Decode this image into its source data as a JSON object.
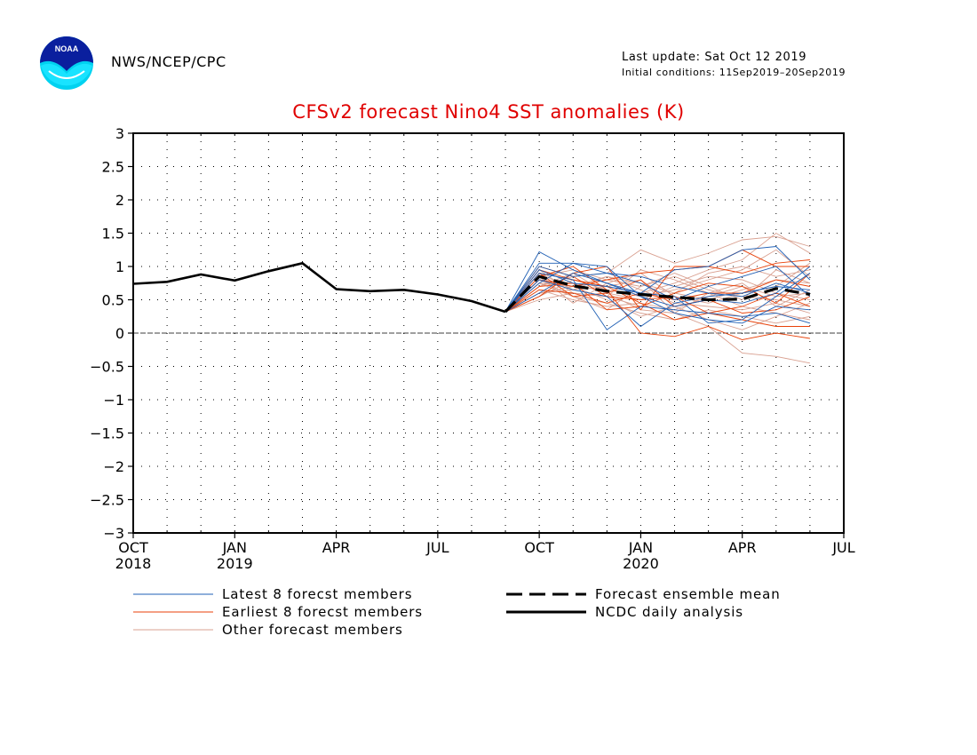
{
  "header": {
    "org": "NWS/NCEP/CPC",
    "last_update": "Last update: Sat Oct 12 2019",
    "initial_conditions": "Initial conditions: 11Sep2019–20Sep2019"
  },
  "logo": {
    "text": "NOAA"
  },
  "chart_data": {
    "type": "line",
    "title": "CFSv2 forecast Nino4 SST anomalies (K)",
    "xlabel": "",
    "ylabel": "",
    "ylim": [
      -3,
      3
    ],
    "xlim": [
      "2018-10",
      "2020-07"
    ],
    "grid": true,
    "yticks": [
      "3",
      "2.5",
      "2",
      "1.5",
      "1",
      "0.5",
      "0",
      "−0.5",
      "−1",
      "−1.5",
      "−2",
      "−2.5",
      "−3"
    ],
    "ytick_values": [
      3,
      2.5,
      2,
      1.5,
      1,
      0.5,
      0,
      -0.5,
      -1,
      -1.5,
      -2,
      -2.5,
      -3
    ],
    "xticks": [
      {
        "month": "2018-10",
        "label": "OCT",
        "year": "2018"
      },
      {
        "month": "2019-01",
        "label": "JAN",
        "year": "2019"
      },
      {
        "month": "2019-04",
        "label": "APR",
        "year": ""
      },
      {
        "month": "2019-07",
        "label": "JUL",
        "year": ""
      },
      {
        "month": "2019-10",
        "label": "OCT",
        "year": ""
      },
      {
        "month": "2020-01",
        "label": "JAN",
        "year": "2020"
      },
      {
        "month": "2020-04",
        "label": "APR",
        "year": ""
      },
      {
        "month": "2020-07",
        "label": "JUL",
        "year": ""
      }
    ],
    "series": [
      {
        "name": "NCDC daily analysis",
        "style": "solid",
        "color": "#000000",
        "x": [
          "2018-10",
          "2018-11",
          "2018-12",
          "2019-01",
          "2019-02",
          "2019-03",
          "2019-04",
          "2019-05",
          "2019-06",
          "2019-07",
          "2019-08",
          "2019-09"
        ],
        "y": [
          0.74,
          0.77,
          0.88,
          0.79,
          0.93,
          1.05,
          0.66,
          0.63,
          0.65,
          0.58,
          0.48,
          0.32
        ]
      },
      {
        "name": "Forecast ensemble mean",
        "style": "dashed",
        "color": "#000000",
        "x": [
          "2019-09",
          "2019-10",
          "2019-11",
          "2019-12",
          "2020-01",
          "2020-02",
          "2020-03",
          "2020-04",
          "2020-05",
          "2020-06"
        ],
        "y": [
          0.32,
          0.85,
          0.71,
          0.63,
          0.58,
          0.54,
          0.5,
          0.51,
          0.67,
          0.58
        ]
      },
      {
        "name": "Latest 8 forecst members",
        "style": "thin",
        "color": "#1f5fb4",
        "x": [
          "2019-09",
          "2019-10",
          "2019-11",
          "2019-12",
          "2020-01",
          "2020-02",
          "2020-03",
          "2020-04",
          "2020-05",
          "2020-06"
        ],
        "members": [
          [
            0.32,
            1.22,
            0.95,
            0.75,
            0.55,
            0.3,
            0.2,
            0.15,
            0.4,
            0.35
          ],
          [
            0.32,
            1.05,
            1.05,
            0.9,
            0.85,
            0.7,
            0.6,
            0.55,
            0.75,
            0.6
          ],
          [
            0.32,
            0.9,
            0.8,
            0.05,
            0.4,
            0.35,
            0.3,
            0.25,
            0.3,
            0.15
          ],
          [
            0.32,
            0.8,
            0.65,
            0.55,
            0.1,
            0.45,
            0.55,
            0.6,
            0.7,
            0.65
          ],
          [
            0.32,
            0.95,
            0.75,
            0.7,
            0.6,
            0.95,
            1.0,
            1.25,
            1.3,
            0.8
          ],
          [
            0.32,
            0.75,
            1.05,
            1.0,
            0.55,
            0.4,
            0.5,
            0.45,
            0.6,
            1.0
          ],
          [
            0.32,
            0.6,
            0.9,
            0.75,
            0.6,
            0.55,
            0.15,
            0.2,
            0.55,
            0.9
          ],
          [
            0.32,
            1.0,
            0.85,
            0.9,
            0.75,
            0.5,
            0.7,
            0.85,
            1.0,
            0.55
          ]
        ]
      },
      {
        "name": "Earliest 8 forecst members",
        "style": "thin",
        "color": "#e8420a",
        "x": [
          "2019-09",
          "2019-10",
          "2019-11",
          "2019-12",
          "2020-01",
          "2020-02",
          "2020-03",
          "2020-04",
          "2020-05",
          "2020-06"
        ],
        "members": [
          [
            0.32,
            0.95,
            0.8,
            0.7,
            0.45,
            0.2,
            0.3,
            0.2,
            0.1,
            0.1
          ],
          [
            0.32,
            0.55,
            0.9,
            1.0,
            0.35,
            1.0,
            1.0,
            1.25,
            1.0,
            1.0
          ],
          [
            0.32,
            0.85,
            1.0,
            0.65,
            0.0,
            -0.05,
            0.1,
            -0.1,
            0.0,
            -0.08
          ],
          [
            0.32,
            0.65,
            0.6,
            0.45,
            0.6,
            0.5,
            0.6,
            0.6,
            0.8,
            0.7
          ],
          [
            0.32,
            1.0,
            0.85,
            0.55,
            0.5,
            0.55,
            0.3,
            0.4,
            0.6,
            0.4
          ],
          [
            0.32,
            0.8,
            0.7,
            0.8,
            0.9,
            0.95,
            1.0,
            0.9,
            1.05,
            1.1
          ],
          [
            0.32,
            0.7,
            0.75,
            0.35,
            0.4,
            0.6,
            0.75,
            0.7,
            0.45,
            0.9
          ],
          [
            0.32,
            0.9,
            0.55,
            0.6,
            0.8,
            0.4,
            0.5,
            0.3,
            0.35,
            0.55
          ]
        ]
      },
      {
        "name": "Other forecast members",
        "style": "thin",
        "color": "#d9a090",
        "x": [
          "2019-09",
          "2019-10",
          "2019-11",
          "2019-12",
          "2020-01",
          "2020-02",
          "2020-03",
          "2020-04",
          "2020-05",
          "2020-06"
        ],
        "members": [
          [
            0.32,
            0.7,
            0.85,
            0.9,
            1.25,
            1.05,
            1.2,
            1.4,
            1.45,
            1.3
          ],
          [
            0.32,
            0.8,
            0.75,
            0.6,
            0.35,
            0.3,
            0.1,
            -0.3,
            -0.35,
            -0.45
          ],
          [
            0.32,
            0.9,
            0.65,
            0.7,
            0.6,
            0.75,
            0.95,
            1.1,
            1.5,
            1.2
          ],
          [
            0.32,
            0.75,
            0.55,
            0.45,
            0.3,
            0.2,
            0.35,
            0.25,
            0.15,
            0.25
          ],
          [
            0.32,
            0.6,
            0.7,
            0.85,
            0.75,
            0.6,
            0.5,
            0.65,
            0.8,
            0.75
          ],
          [
            0.32,
            0.85,
            0.95,
            0.8,
            0.7,
            0.85,
            0.65,
            0.55,
            0.5,
            0.4
          ],
          [
            0.32,
            0.65,
            0.5,
            0.4,
            0.45,
            0.35,
            0.55,
            0.7,
            0.55,
            0.6
          ],
          [
            0.32,
            0.95,
            0.6,
            0.55,
            0.95,
            0.8,
            0.6,
            0.4,
            0.3,
            0.2
          ],
          [
            0.32,
            0.55,
            0.8,
            0.65,
            0.55,
            0.65,
            0.8,
            0.95,
            1.25,
            0.85
          ],
          [
            0.32,
            0.75,
            0.7,
            0.5,
            0.25,
            0.4,
            0.2,
            0.05,
            0.25,
            0.45
          ],
          [
            0.32,
            0.85,
            0.45,
            0.75,
            0.9,
            0.55,
            0.45,
            0.6,
            0.7,
            1.05
          ],
          [
            0.32,
            0.7,
            0.9,
            0.6,
            0.5,
            0.7,
            0.85,
            0.8,
            0.6,
            0.5
          ],
          [
            0.32,
            0.6,
            0.65,
            0.85,
            0.65,
            0.45,
            0.4,
            0.35,
            0.45,
            0.3
          ],
          [
            0.32,
            0.8,
            0.55,
            0.35,
            0.7,
            0.9,
            0.7,
            0.5,
            0.95,
            0.75
          ],
          [
            0.32,
            0.9,
            0.8,
            0.7,
            0.8,
            0.3,
            0.6,
            0.75,
            0.4,
            0.65
          ],
          [
            0.32,
            0.5,
            0.6,
            0.55,
            0.4,
            0.6,
            0.9,
            1.0,
            0.85,
            0.95
          ]
        ]
      }
    ],
    "zero_line": true
  },
  "legend": {
    "latest": "Latest 8 forecst members",
    "earliest": "Earliest 8 forecst members",
    "other": "Other forecast members",
    "mean": "Forecast ensemble mean",
    "ncdc": "NCDC daily analysis"
  }
}
